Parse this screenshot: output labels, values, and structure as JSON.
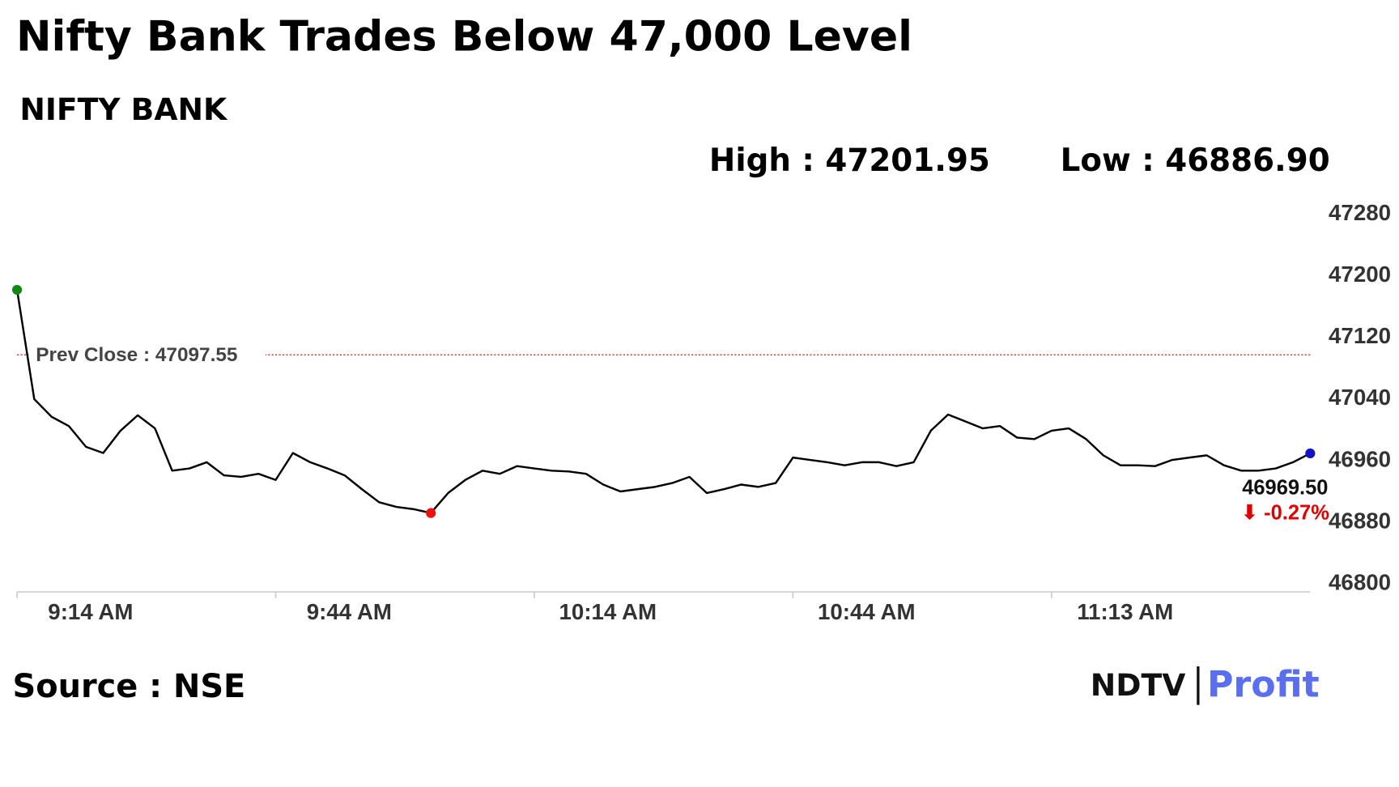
{
  "chart_data": {
    "type": "line",
    "title": "Nifty Bank Trades Below 47,000 Level",
    "subtitle": "NIFTY BANK",
    "high_label": "High : 47201.95",
    "low_label": "Low : 46886.90",
    "prev_close": 47097.55,
    "prev_close_label": "Prev Close : 47097.55",
    "prev_close_color": "#cc0000",
    "current_label": "46969.50",
    "change_label": "⬇ -0.27%",
    "change_color": "#e00000",
    "source": "Source : NSE",
    "logo": {
      "left": "NDTV",
      "right": "Profit"
    },
    "color": "#000000",
    "start_color": "#118811",
    "low_color": "#ee1111",
    "end_color": "#1111cc",
    "categories": [
      "9:14 AM",
      null,
      null,
      null,
      null,
      null,
      null,
      null,
      null,
      null,
      null,
      null,
      null,
      null,
      null,
      "9:44 AM",
      null,
      null,
      null,
      null,
      null,
      null,
      null,
      null,
      null,
      null,
      null,
      null,
      null,
      null,
      "10:14 AM",
      null,
      null,
      null,
      null,
      null,
      null,
      null,
      null,
      null,
      null,
      null,
      null,
      null,
      null,
      "10:44 AM",
      null,
      null,
      null,
      null,
      null,
      null,
      null,
      null,
      null,
      null,
      null,
      null,
      null,
      null,
      "11:13 AM",
      null,
      null,
      null,
      null,
      null,
      null,
      null,
      null,
      null,
      null,
      null,
      null,
      null,
      null,
      null
    ],
    "values": [
      47182,
      47040,
      47017,
      47005,
      46978,
      46970,
      46999,
      47019,
      47002,
      46947,
      46950,
      46958,
      46941,
      46939,
      46943,
      46935,
      46970,
      46958,
      46950,
      46941,
      46923,
      46906,
      46900,
      46897,
      46892,
      46918,
      46935,
      46947,
      46943,
      46953,
      46950,
      46947,
      46946,
      46943,
      46929,
      46920,
      46923,
      46926,
      46931,
      46939,
      46918,
      46923,
      46929,
      46926,
      46931,
      46964,
      46961,
      46958,
      46954,
      46958,
      46958,
      46953,
      46958,
      46999,
      47020,
      47011,
      47002,
      47005,
      46990,
      46988,
      46999,
      47002,
      46988,
      46967,
      46954,
      46954,
      46953,
      46961,
      46964,
      46967,
      46954,
      46947,
      46947,
      46950,
      46958,
      46969.5
    ],
    "ylim": [
      46800,
      47280
    ],
    "yticks": [
      46800,
      46880,
      46960,
      47040,
      47120,
      47200,
      47280
    ]
  }
}
